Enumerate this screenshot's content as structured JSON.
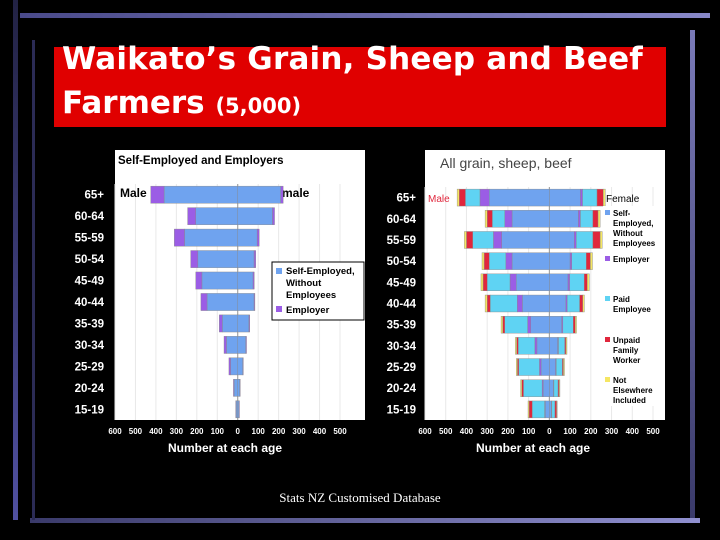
{
  "title": {
    "line1": "Waikato’s Grain, Sheep and Beef",
    "line2_main": "Farmers",
    "line2_sub": "(5,000)"
  },
  "source": "Stats NZ Customised Database",
  "colors": {
    "background": "#000000",
    "title_bg": "#e00000",
    "title_text": "#ffffff",
    "plot_bg": "#ffffff",
    "self_employed": "#6fa3ef",
    "employer": "#9b5de5",
    "paid_employee": "#5fd3f3",
    "unpaid_family_worker": "#e0263c",
    "not_elsewhere": "#f5e663"
  },
  "chart_data": [
    {
      "type": "bar",
      "orientation": "population-pyramid",
      "title": "Self-Employed and Employers",
      "xlabel": "Number at each age",
      "xlim": [
        -600,
        500
      ],
      "x_ticks": [
        "600",
        "500",
        "400",
        "300",
        "200",
        "100",
        "0",
        "100",
        "200",
        "300",
        "400",
        "500"
      ],
      "categories": [
        "65+",
        "60-64",
        "55-59",
        "50-54",
        "45-49",
        "40-44",
        "35-39",
        "30-34",
        "25-29",
        "20-24",
        "15-19"
      ],
      "side_labels": {
        "left": "Male",
        "right": "Female"
      },
      "legend": [
        "Self-Employed, Without Employees",
        "Employer"
      ],
      "male": {
        "self_employed": [
          -360,
          -205,
          -260,
          -195,
          -175,
          -150,
          -75,
          -55,
          -35,
          -18,
          -8
        ],
        "employer": [
          -65,
          -40,
          -50,
          -35,
          -30,
          -30,
          -15,
          -12,
          -8,
          -3,
          -2
        ]
      },
      "female": {
        "self_employed": [
          210,
          170,
          95,
          80,
          75,
          80,
          55,
          40,
          25,
          10,
          6
        ],
        "employer": [
          12,
          10,
          10,
          8,
          6,
          4,
          4,
          3,
          2,
          2,
          1
        ]
      }
    },
    {
      "type": "bar",
      "orientation": "population-pyramid",
      "title": "All grain, sheep, beef",
      "xlabel": "Number at each age",
      "xlim": [
        -600,
        500
      ],
      "x_ticks": [
        "600",
        "500",
        "400",
        "300",
        "200",
        "100",
        "0",
        "100",
        "200",
        "300",
        "400",
        "500"
      ],
      "categories": [
        "65+",
        "60-64",
        "55-59",
        "50-54",
        "45-49",
        "40-44",
        "35-39",
        "30-34",
        "25-29",
        "20-24",
        "15-19"
      ],
      "side_labels": {
        "left": "Male",
        "right": "Female"
      },
      "legend": [
        "Self-Employed, Without Employees",
        "Employer",
        "Paid Employee",
        "Unpaid Family Worker",
        "Not Elsewhere Included"
      ],
      "male": {
        "self_employed": [
          -290,
          -180,
          -230,
          -180,
          -160,
          -130,
          -90,
          -60,
          -40,
          -30,
          -20
        ],
        "employer": [
          -45,
          -35,
          -40,
          -30,
          -30,
          -25,
          -15,
          -10,
          -8,
          -5,
          -3
        ],
        "paid_employee": [
          -70,
          -60,
          -100,
          -80,
          -110,
          -130,
          -110,
          -80,
          -100,
          -90,
          -60
        ],
        "unpaid_family_worker": [
          -30,
          -25,
          -30,
          -25,
          -20,
          -15,
          -10,
          -8,
          -6,
          -8,
          -15
        ],
        "not_elsewhere": [
          -10,
          -10,
          -10,
          -10,
          -10,
          -10,
          -8,
          -6,
          -6,
          -6,
          -5
        ]
      },
      "female": {
        "self_employed": [
          150,
          140,
          120,
          100,
          90,
          80,
          60,
          40,
          30,
          20,
          10
        ],
        "employer": [
          10,
          10,
          10,
          8,
          8,
          6,
          5,
          4,
          3,
          2,
          2
        ],
        "paid_employee": [
          70,
          60,
          80,
          70,
          70,
          60,
          50,
          30,
          30,
          20,
          15
        ],
        "unpaid_family_worker": [
          30,
          25,
          35,
          20,
          15,
          15,
          10,
          6,
          5,
          5,
          8
        ],
        "not_elsewhere": [
          10,
          10,
          10,
          10,
          10,
          8,
          6,
          5,
          5,
          4,
          3
        ]
      }
    }
  ]
}
